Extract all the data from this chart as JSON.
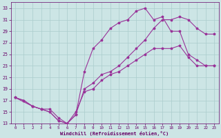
{
  "background_color": "#cce5e5",
  "grid_color": "#aacccc",
  "line_color": "#993399",
  "marker": "*",
  "xlabel": "Windchill (Refroidissement éolien,°C)",
  "xlabel_color": "#660066",
  "tick_color": "#660066",
  "xlim": [
    -0.5,
    23.5
  ],
  "ylim": [
    13,
    34
  ],
  "xticks": [
    0,
    1,
    2,
    3,
    4,
    5,
    6,
    7,
    8,
    9,
    10,
    11,
    12,
    13,
    14,
    15,
    16,
    17,
    18,
    19,
    20,
    21,
    22,
    23
  ],
  "yticks": [
    13,
    15,
    17,
    19,
    21,
    23,
    25,
    27,
    29,
    31,
    33
  ],
  "lines": [
    {
      "x": [
        0,
        1,
        2,
        3,
        4,
        5,
        6,
        7,
        8,
        9,
        10,
        11,
        12,
        13,
        14,
        15,
        16,
        17,
        18,
        19,
        20,
        21,
        22,
        23
      ],
      "y": [
        17.5,
        17.0,
        16.0,
        15.5,
        15.0,
        13.5,
        13.0,
        15.0,
        18.5,
        19.0,
        20.5,
        21.5,
        22.0,
        23.0,
        24.0,
        25.0,
        26.0,
        26.0,
        26.0,
        26.5,
        24.5,
        23.0,
        23.0,
        23.0
      ]
    },
    {
      "x": [
        0,
        1,
        2,
        3,
        4,
        5,
        6,
        7,
        8,
        9,
        10,
        11,
        12,
        13,
        14,
        15,
        16,
        17,
        18,
        19,
        20,
        21,
        22,
        23
      ],
      "y": [
        17.5,
        17.0,
        16.0,
        15.5,
        15.5,
        14.0,
        13.0,
        14.5,
        22.0,
        26.0,
        27.5,
        29.5,
        30.5,
        31.0,
        32.5,
        33.0,
        31.0,
        31.5,
        29.0,
        29.0,
        25.0,
        24.0,
        23.0,
        23.0
      ]
    },
    {
      "x": [
        0,
        2,
        3,
        4,
        5,
        6,
        7,
        8,
        9,
        10,
        11,
        12,
        13,
        14,
        15,
        16,
        17,
        18,
        19,
        20,
        21,
        22,
        23
      ],
      "y": [
        17.5,
        16.0,
        15.5,
        15.0,
        13.5,
        13.0,
        14.5,
        19.0,
        20.0,
        21.5,
        22.0,
        23.0,
        24.5,
        26.0,
        27.5,
        29.5,
        31.0,
        31.0,
        31.5,
        31.0,
        29.5,
        28.5,
        28.5
      ]
    }
  ],
  "figsize": [
    3.2,
    2.0
  ],
  "dpi": 100
}
